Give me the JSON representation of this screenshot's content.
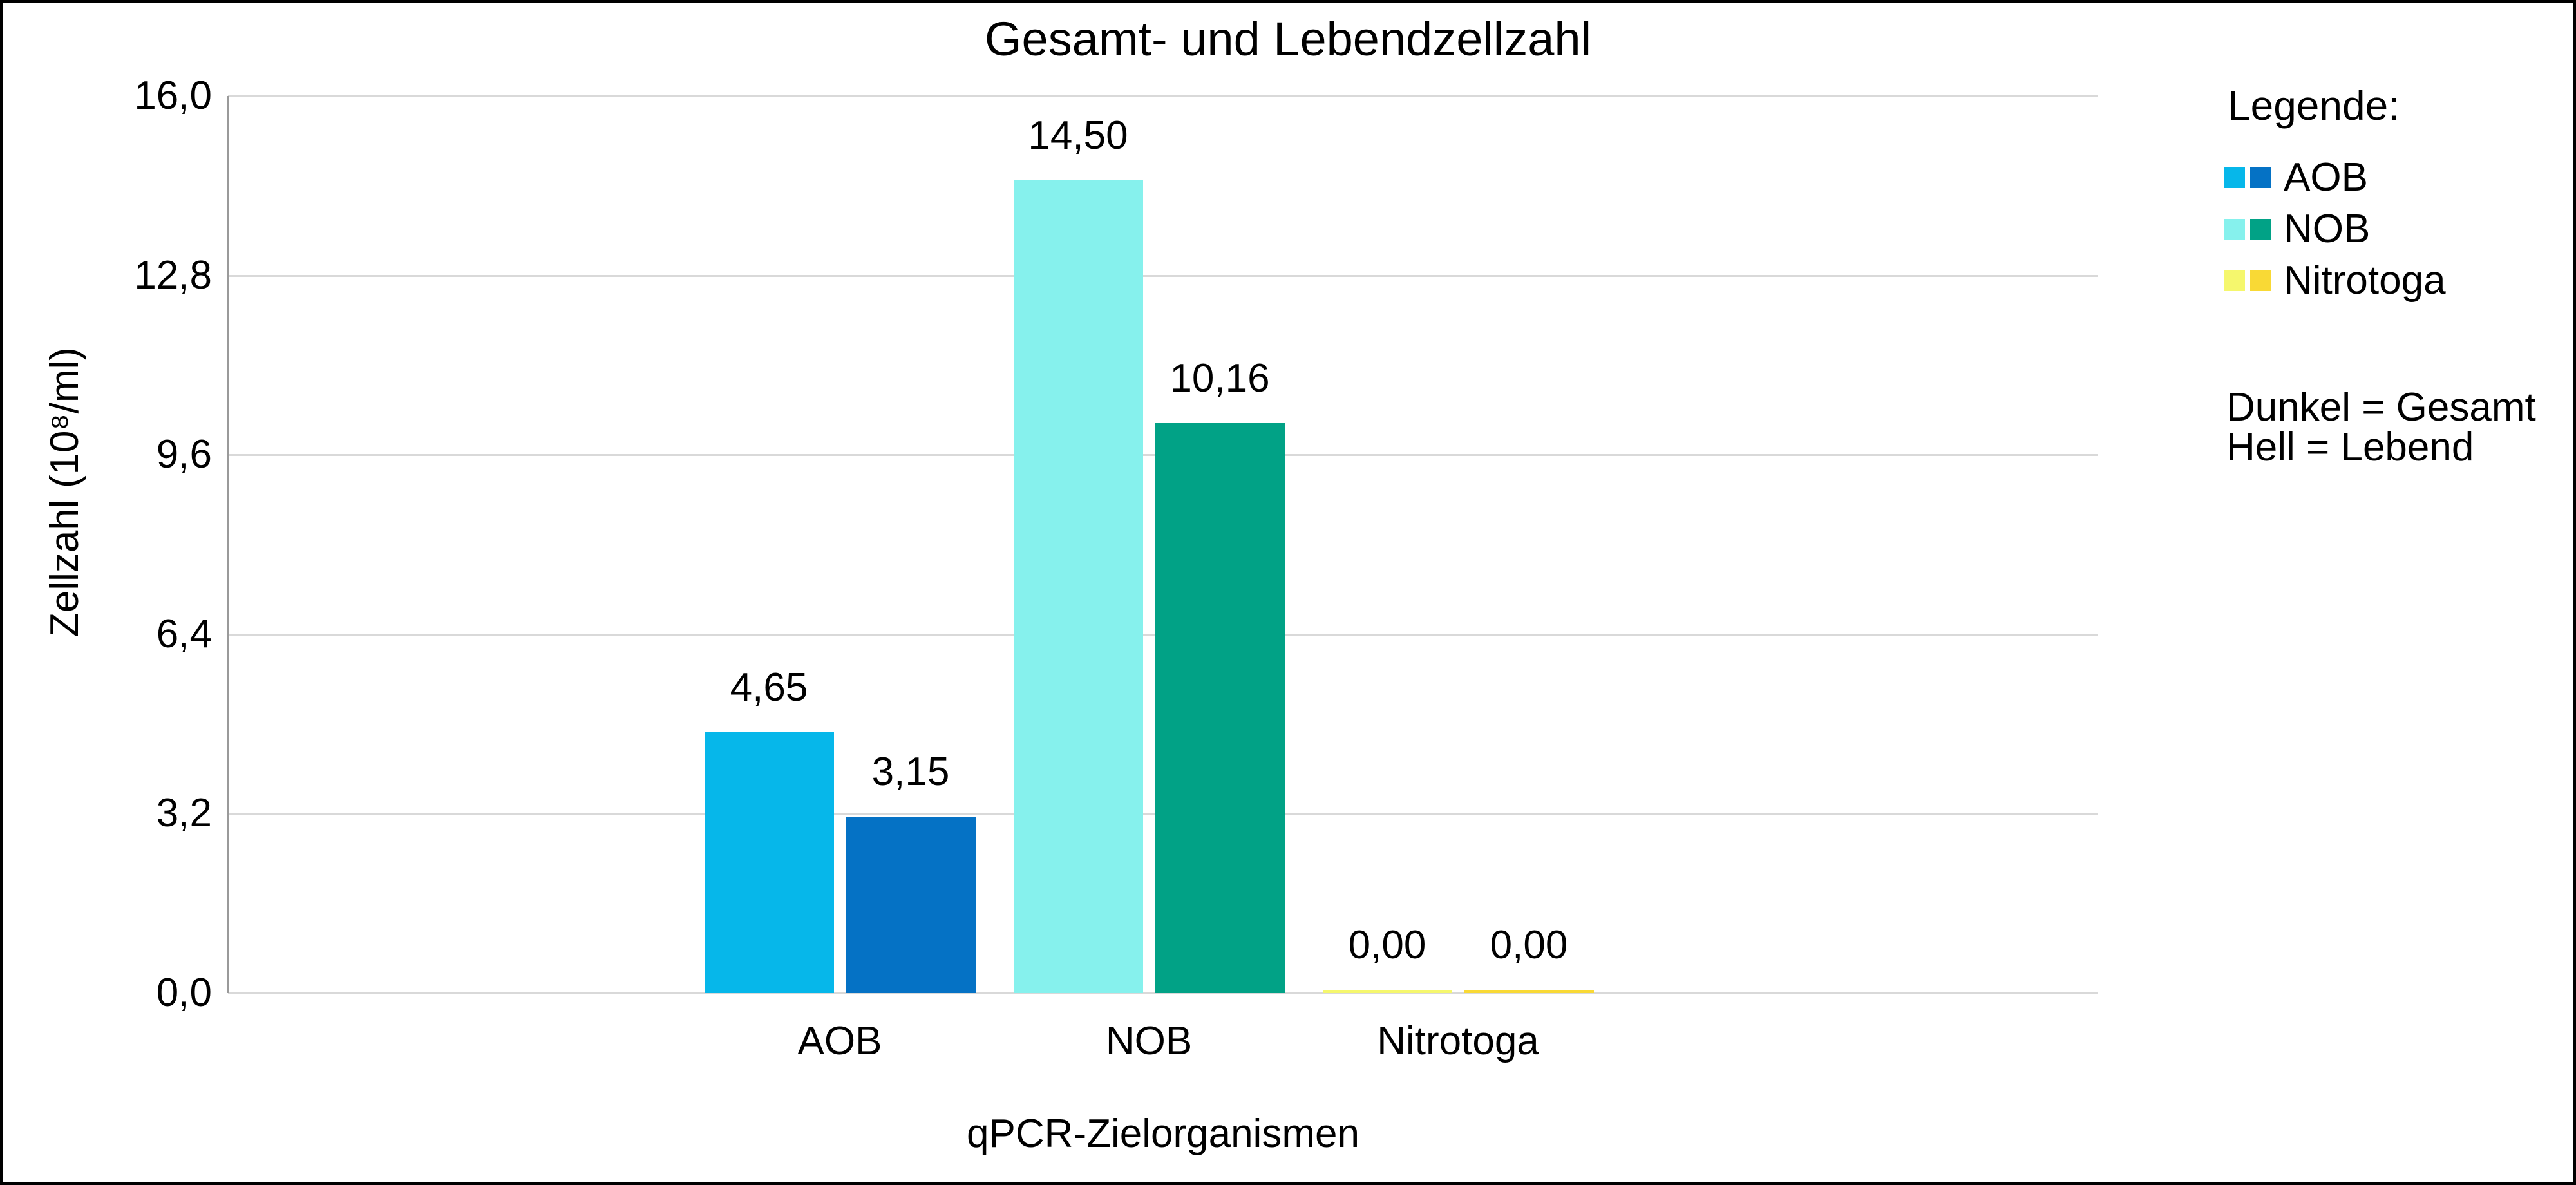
{
  "chart_data": {
    "type": "bar",
    "title": "Gesamt- und Lebendzellzahl",
    "xlabel": "qPCR-Zielorganismen",
    "ylabel": "Zellzahl (10⁸/ml)",
    "ylim": [
      0,
      16
    ],
    "grid": true,
    "legend_position": "right",
    "yticks": [
      {
        "value": 0.0,
        "label": "0,0"
      },
      {
        "value": 3.2,
        "label": "3,2"
      },
      {
        "value": 6.4,
        "label": "6,4"
      },
      {
        "value": 9.6,
        "label": "9,6"
      },
      {
        "value": 12.8,
        "label": "12,8"
      },
      {
        "value": 16.0,
        "label": "16,0"
      }
    ],
    "categories": [
      "AOB",
      "NOB",
      "Nitrotoga"
    ],
    "series": [
      {
        "name": "Hell = Lebend",
        "shade": "hell",
        "values": [
          4.65,
          14.5,
          0.0
        ],
        "value_labels": [
          "4,65",
          "14,50",
          "0,00"
        ],
        "colors": [
          "#06b7ea",
          "#86f1ed",
          "#f5f76d"
        ]
      },
      {
        "name": "Dunkel = Gesamt",
        "shade": "dunkel",
        "values": [
          3.15,
          10.16,
          0.0
        ],
        "value_labels": [
          "3,15",
          "10,16",
          "0,00"
        ],
        "colors": [
          "#0572c5",
          "#01a286",
          "#f9d935"
        ]
      }
    ],
    "legend": {
      "heading": "Legende:",
      "entries": [
        {
          "label": "AOB",
          "hell": "#06b7ea",
          "dunkel": "#0572c5"
        },
        {
          "label": "NOB",
          "hell": "#86f1ed",
          "dunkel": "#01a286"
        },
        {
          "label": "Nitrotoga",
          "hell": "#f5f76d",
          "dunkel": "#f9d935"
        }
      ],
      "notes": [
        "Dunkel = Gesamt",
        "Hell = Lebend"
      ]
    },
    "style": {
      "axis_line_color": "#9a9a9a",
      "gridline_color": "#d9d9d9",
      "text_color": "#000000",
      "background": "#ffffff"
    }
  }
}
